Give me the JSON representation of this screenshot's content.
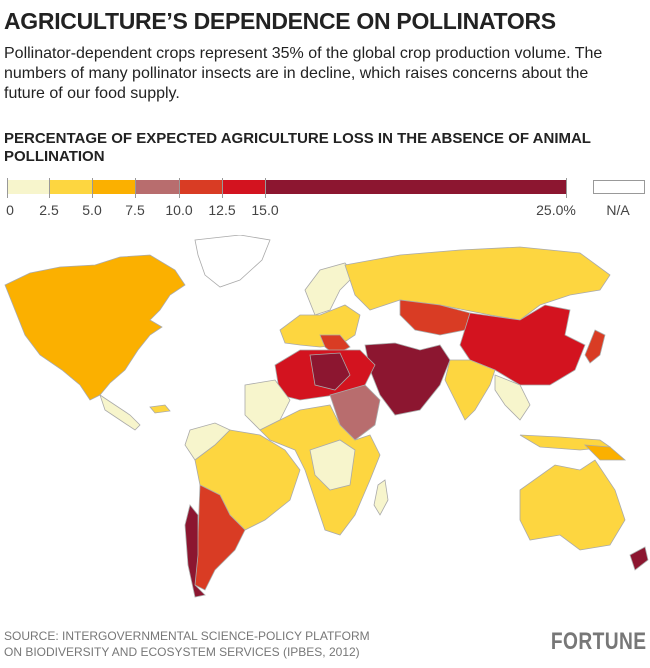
{
  "title": "AGRICULTURE’S DEPENDENCE ON POLLINATORS",
  "subtitle": "Pollinator-dependent crops represent 35% of the global crop production volume. The numbers of many pollinator insects are in decline, which raises concerns about the future of our food supply.",
  "legend": {
    "title": "PERCENTAGE OF EXPECTED AGRICULTURE LOSS IN THE ABSENCE OF ANIMAL POLLINATION",
    "ticks": [
      "0",
      "2.5",
      "5.0",
      "7.5",
      "10.0",
      "12.5",
      "15.0",
      "25.0%"
    ],
    "bins": [
      {
        "range": [
          0,
          2.5
        ],
        "color": "#f7f5cc"
      },
      {
        "range": [
          2.5,
          5.0
        ],
        "color": "#fdd640"
      },
      {
        "range": [
          5.0,
          7.5
        ],
        "color": "#fbb000"
      },
      {
        "range": [
          7.5,
          10.0
        ],
        "color": "#b86d6e"
      },
      {
        "range": [
          10.0,
          12.5
        ],
        "color": "#d93c24"
      },
      {
        "range": [
          12.5,
          15.0
        ],
        "color": "#d3131f"
      },
      {
        "range": [
          15.0,
          25.0
        ],
        "color": "#8c1630"
      }
    ],
    "na_label": "N/A",
    "na_color": "#ffffff"
  },
  "source": [
    "SOURCE: INTERGOVERNMENTAL SCIENCE-POLICY PLATFORM",
    "ON BIODIVERSITY AND ECOSYSTEM SERVICES (IPBES, 2012)"
  ],
  "logo": "FORTUNE"
}
